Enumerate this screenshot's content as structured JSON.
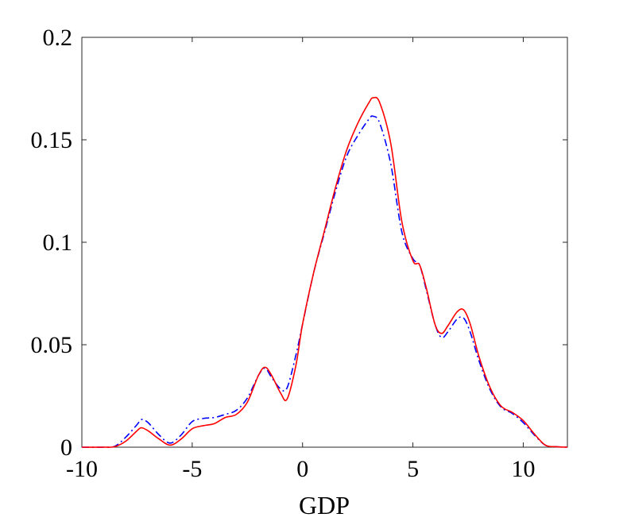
{
  "chart_data": {
    "type": "line",
    "title": "",
    "xlabel": "GDP",
    "ylabel": "",
    "xlim": [
      -10,
      12
    ],
    "ylim": [
      0,
      0.2
    ],
    "grid": false,
    "xticks": [
      -10,
      -5,
      0,
      5,
      10
    ],
    "xtick_labels": [
      "-10",
      "-5",
      "0",
      "5",
      "10"
    ],
    "yticks": [
      0,
      0.05,
      0.1,
      0.15,
      0.2
    ],
    "ytick_labels": [
      "0",
      "0.05",
      "0.1",
      "0.15",
      "0.2"
    ],
    "series": [
      {
        "style": "dash-dot",
        "color": "#0000ff",
        "x": [
          -10,
          -9,
          -8.5,
          -8,
          -7.5,
          -7.3,
          -7,
          -6.5,
          -6,
          -5.5,
          -5,
          -4.5,
          -4,
          -3.5,
          -3,
          -2.5,
          -2,
          -1.7,
          -1.4,
          -1,
          -0.7,
          -0.3,
          0,
          0.5,
          1,
          1.5,
          2,
          2.5,
          3,
          3.2,
          3.5,
          4,
          4.5,
          5,
          5.3,
          5.6,
          6,
          6.3,
          6.6,
          7,
          7.3,
          7.6,
          8,
          8.5,
          9,
          9.5,
          10,
          10.5,
          11,
          11.5,
          12
        ],
        "y": [
          0,
          0,
          0.0005,
          0.005,
          0.011,
          0.0135,
          0.012,
          0.006,
          0.002,
          0.006,
          0.0125,
          0.014,
          0.0145,
          0.016,
          0.018,
          0.024,
          0.035,
          0.0385,
          0.034,
          0.0285,
          0.029,
          0.045,
          0.06,
          0.085,
          0.105,
          0.125,
          0.142,
          0.152,
          0.16,
          0.1615,
          0.158,
          0.138,
          0.105,
          0.092,
          0.089,
          0.077,
          0.06,
          0.0535,
          0.0565,
          0.0625,
          0.063,
          0.056,
          0.042,
          0.028,
          0.0195,
          0.0165,
          0.012,
          0.006,
          0.001,
          0.0002,
          0
        ]
      },
      {
        "style": "solid",
        "color": "#ff0000",
        "x": [
          -10,
          -9,
          -8.5,
          -8,
          -7.5,
          -7.3,
          -7,
          -6.5,
          -6,
          -5.5,
          -5,
          -4.5,
          -4,
          -3.5,
          -3,
          -2.5,
          -2,
          -1.7,
          -1.4,
          -1,
          -0.7,
          -0.3,
          0,
          0.5,
          1,
          1.5,
          2,
          2.5,
          3,
          3.2,
          3.5,
          4,
          4.5,
          5,
          5.3,
          5.6,
          6,
          6.3,
          6.6,
          7,
          7.3,
          7.6,
          8,
          8.5,
          9,
          9.5,
          10,
          10.5,
          11,
          11.5,
          12
        ],
        "y": [
          0,
          0,
          0.0003,
          0.003,
          0.008,
          0.0095,
          0.008,
          0.004,
          0.001,
          0.004,
          0.009,
          0.0105,
          0.0115,
          0.0145,
          0.016,
          0.022,
          0.035,
          0.039,
          0.035,
          0.0265,
          0.0235,
          0.04,
          0.06,
          0.085,
          0.106,
          0.127,
          0.145,
          0.158,
          0.168,
          0.1705,
          0.168,
          0.148,
          0.11,
          0.091,
          0.089,
          0.078,
          0.06,
          0.0555,
          0.0595,
          0.066,
          0.067,
          0.06,
          0.044,
          0.029,
          0.02,
          0.017,
          0.013,
          0.0065,
          0.001,
          0.0002,
          0
        ]
      }
    ]
  }
}
